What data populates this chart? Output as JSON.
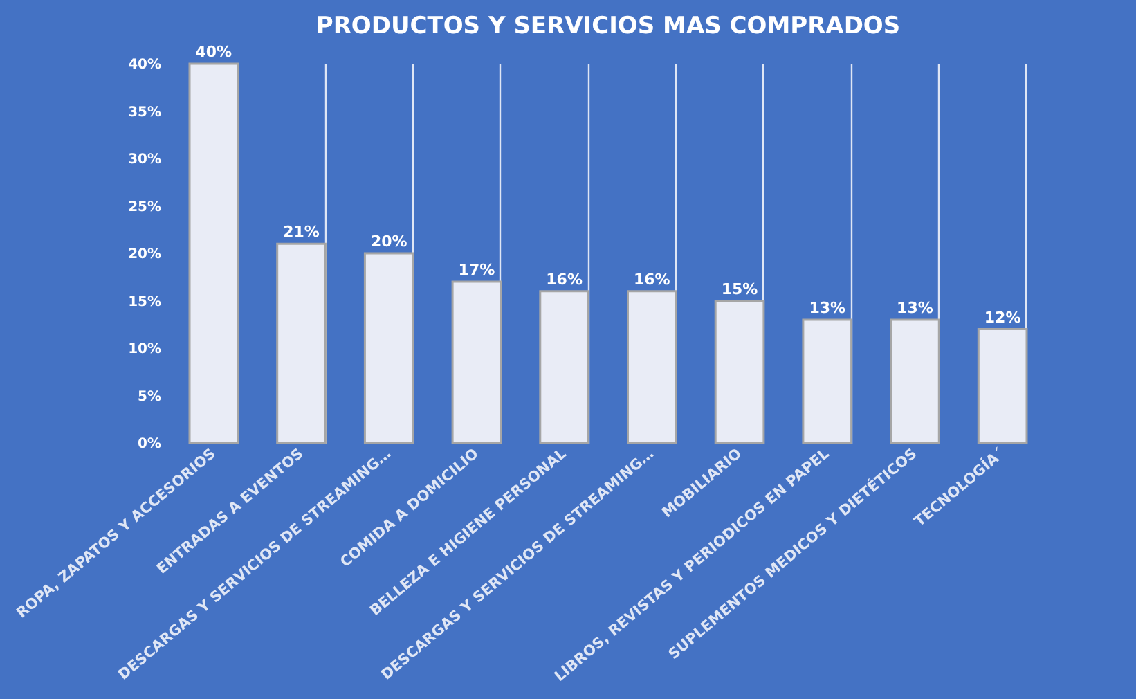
{
  "chart_data": {
    "type": "bar",
    "title": "PRODUCTOS Y SERVICIOS MAS COMPRADOS",
    "categories": [
      "ROPA, ZAPATOS Y ACCESORIOS",
      "ENTRADAS A EVENTOS",
      "DESCARGAS Y SERVICIOS DE STREAMING…",
      "COMIDA A DOMICILIO",
      "BELLEZA E HIGIENE PERSONAL",
      "DESCARGAS Y SERVICIOS DE STREAMING…",
      "MOBILIARIO",
      "LIBROS, REVISTAS Y PERIODICOS EN PAPEL",
      "SUPLEMENTOS MEDICOS Y DIETÉTICOS",
      "TECNOLOGÍA´"
    ],
    "values": [
      40,
      21,
      20,
      17,
      16,
      16,
      15,
      13,
      13,
      12
    ],
    "value_labels": [
      "40%",
      "21%",
      "20%",
      "17%",
      "16%",
      "16%",
      "15%",
      "13%",
      "13%",
      "12%"
    ],
    "color": "#e9ecf6",
    "ylim": [
      0,
      40
    ],
    "yticks": [
      {
        "value": 0,
        "label": "0%"
      },
      {
        "value": 5,
        "label": "5%"
      },
      {
        "value": 10,
        "label": "10%"
      },
      {
        "value": 15,
        "label": "15%"
      },
      {
        "value": 20,
        "label": "20%"
      },
      {
        "value": 25,
        "label": "25%"
      },
      {
        "value": 30,
        "label": "30%"
      },
      {
        "value": 35,
        "label": "35%"
      },
      {
        "value": 40,
        "label": "40%"
      }
    ],
    "grid": "x"
  }
}
